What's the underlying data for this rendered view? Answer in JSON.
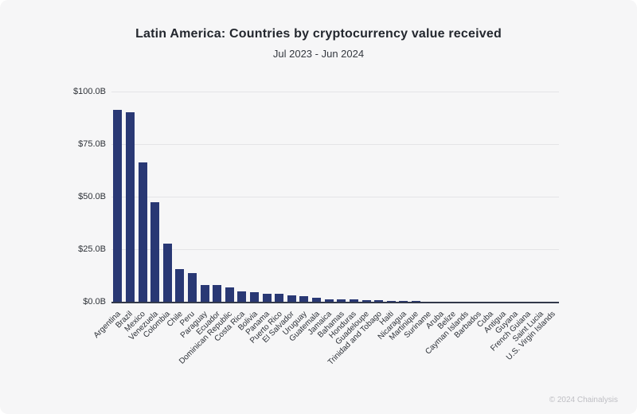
{
  "header": {
    "title": "Latin America: Countries by cryptocurrency value received",
    "subtitle": "Jul 2023 - Jun 2024"
  },
  "chart_data": {
    "type": "bar",
    "title": "Latin America: Countries by cryptocurrency value received",
    "subtitle": "Jul 2023 - Jun 2024",
    "unit": "USD billions received",
    "categories": [
      "Argentina",
      "Brazil",
      "Mexico",
      "Venezuela",
      "Colombia",
      "Chile",
      "Peru",
      "Paraguay",
      "Ecuador",
      "Dominican Republic",
      "Costa Rica",
      "Bolivia",
      "Panama",
      "Puerto Rico",
      "El Salvador",
      "Uruguay",
      "Guatemala",
      "Jamaica",
      "Bahamas",
      "Honduras",
      "Guadeloupe",
      "Trinidad and Tobago",
      "Haiti",
      "Nicaragua",
      "Martinique",
      "Suriname",
      "Aruba",
      "Belize",
      "Cayman Islands",
      "Barbados",
      "Cuba",
      "Antigua",
      "Guyana",
      "French Guiana",
      "Saint Lucia",
      "U.S. Virgin Islands"
    ],
    "values": [
      91.1,
      90.2,
      66.2,
      47.5,
      27.8,
      15.4,
      13.5,
      8.0,
      7.8,
      7.0,
      4.8,
      4.5,
      3.9,
      3.6,
      3.2,
      2.8,
      1.8,
      1.3,
      1.2,
      1.0,
      0.9,
      0.7,
      0.5,
      0.45,
      0.3,
      0.15,
      0.1,
      0.08,
      0.06,
      0.05,
      0.04,
      0.03,
      0.03,
      0.02,
      0.02,
      0.01
    ],
    "ylim": [
      0,
      100
    ],
    "yticks": [
      {
        "value": 100,
        "label": "$100.0B"
      },
      {
        "value": 75,
        "label": "$75.0B"
      },
      {
        "value": 50,
        "label": "$50.0B"
      },
      {
        "value": 25,
        "label": "$25.0B"
      },
      {
        "value": 0,
        "label": "$0.0B"
      }
    ],
    "grid": true,
    "legend": false,
    "bar_color": "#293874",
    "axis_line_color": "#333a4b",
    "background_color": "#f6f6f7"
  },
  "footer": {
    "attribution": "© 2024 Chainalysis"
  }
}
